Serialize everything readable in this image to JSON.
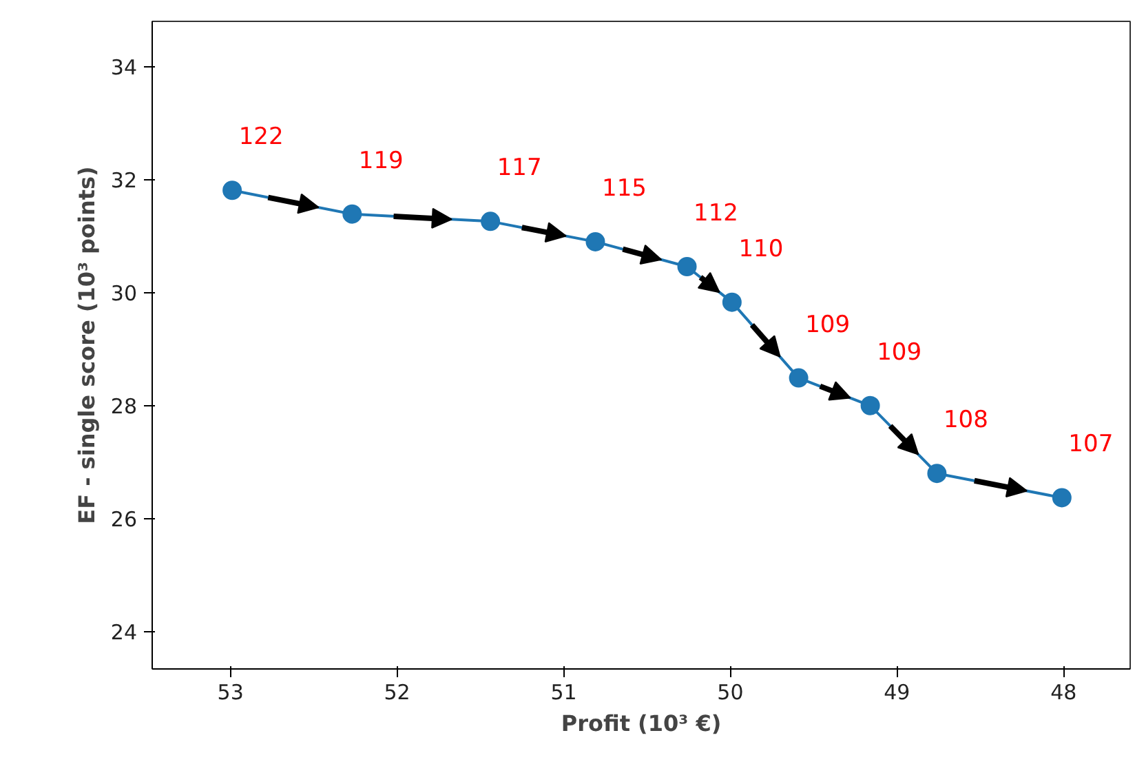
{
  "chart_data": {
    "type": "line",
    "xlabel": "Profit (10³ €)",
    "ylabel": "EF - single score (10³ points)",
    "x": [
      52.99,
      52.27,
      51.44,
      50.81,
      50.26,
      49.99,
      49.59,
      49.16,
      48.76,
      48.01
    ],
    "series": [
      {
        "color": "#1f77b4",
        "values": [
          31.81,
          31.39,
          31.26,
          30.9,
          30.46,
          29.83,
          28.49,
          28.0,
          26.8,
          26.37
        ]
      }
    ],
    "annotations": [
      {
        "text": "122",
        "x": 52.99,
        "y": 31.81
      },
      {
        "text": "119",
        "x": 52.27,
        "y": 31.39
      },
      {
        "text": "117",
        "x": 51.44,
        "y": 31.26
      },
      {
        "text": "115",
        "x": 50.81,
        "y": 30.9
      },
      {
        "text": "112",
        "x": 50.26,
        "y": 30.46
      },
      {
        "text": "110",
        "x": 49.99,
        "y": 29.83
      },
      {
        "text": "109",
        "x": 49.59,
        "y": 28.49
      },
      {
        "text": "109",
        "x": 49.16,
        "y": 28.0
      },
      {
        "text": "108",
        "x": 48.76,
        "y": 26.8
      },
      {
        "text": "107",
        "x": 48.01,
        "y": 26.37
      }
    ],
    "xlim": [
      53.47,
      47.6
    ],
    "ylim": [
      23.34,
      34.8
    ],
    "xticks": [
      53,
      52,
      51,
      50,
      49,
      48
    ],
    "yticks": [
      24,
      26,
      28,
      30,
      32,
      34
    ],
    "grid": false,
    "marker": "circle",
    "line_style": "solid"
  }
}
